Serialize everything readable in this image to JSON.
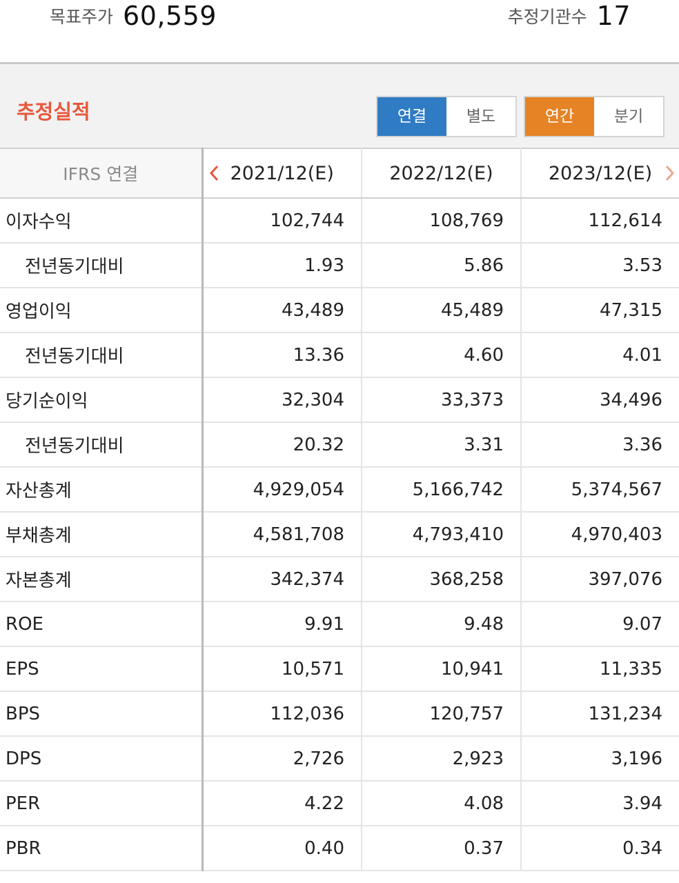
{
  "summary": {
    "target_price_label": "목표주가",
    "target_price_value": "60,559",
    "estimators_label": "추정기관수",
    "estimators_value": "17"
  },
  "section": {
    "title": "추정실적",
    "toggle_scope": [
      "연결",
      "별도"
    ],
    "toggle_scope_selected": "연결",
    "toggle_period": [
      "연간",
      "분기"
    ],
    "toggle_period_selected": "연간"
  },
  "colors": {
    "accent_red": "#e8573b",
    "active_blue": "#2f7bc4",
    "active_orange": "#e58325"
  },
  "table": {
    "corner_label": "IFRS 연결",
    "columns": [
      "2021/12(E)",
      "2022/12(E)",
      "2023/12(E)"
    ],
    "prev_icon": "chevron-left-icon",
    "next_icon": "chevron-right-icon",
    "rows": [
      {
        "label": "이자수익",
        "sub": false,
        "values": [
          "102,744",
          "108,769",
          "112,614"
        ]
      },
      {
        "label": "전년동기대비",
        "sub": true,
        "values": [
          "1.93",
          "5.86",
          "3.53"
        ]
      },
      {
        "label": "영업이익",
        "sub": false,
        "values": [
          "43,489",
          "45,489",
          "47,315"
        ]
      },
      {
        "label": "전년동기대비",
        "sub": true,
        "values": [
          "13.36",
          "4.60",
          "4.01"
        ]
      },
      {
        "label": "당기순이익",
        "sub": false,
        "values": [
          "32,304",
          "33,373",
          "34,496"
        ]
      },
      {
        "label": "전년동기대비",
        "sub": true,
        "values": [
          "20.32",
          "3.31",
          "3.36"
        ]
      },
      {
        "label": "자산총계",
        "sub": false,
        "values": [
          "4,929,054",
          "5,166,742",
          "5,374,567"
        ]
      },
      {
        "label": "부채총계",
        "sub": false,
        "values": [
          "4,581,708",
          "4,793,410",
          "4,970,403"
        ]
      },
      {
        "label": "자본총계",
        "sub": false,
        "values": [
          "342,374",
          "368,258",
          "397,076"
        ]
      },
      {
        "label": "ROE",
        "sub": false,
        "values": [
          "9.91",
          "9.48",
          "9.07"
        ]
      },
      {
        "label": "EPS",
        "sub": false,
        "values": [
          "10,571",
          "10,941",
          "11,335"
        ]
      },
      {
        "label": "BPS",
        "sub": false,
        "values": [
          "112,036",
          "120,757",
          "131,234"
        ]
      },
      {
        "label": "DPS",
        "sub": false,
        "values": [
          "2,726",
          "2,923",
          "3,196"
        ]
      },
      {
        "label": "PER",
        "sub": false,
        "values": [
          "4.22",
          "4.08",
          "3.94"
        ]
      },
      {
        "label": "PBR",
        "sub": false,
        "values": [
          "0.40",
          "0.37",
          "0.34"
        ]
      }
    ]
  }
}
